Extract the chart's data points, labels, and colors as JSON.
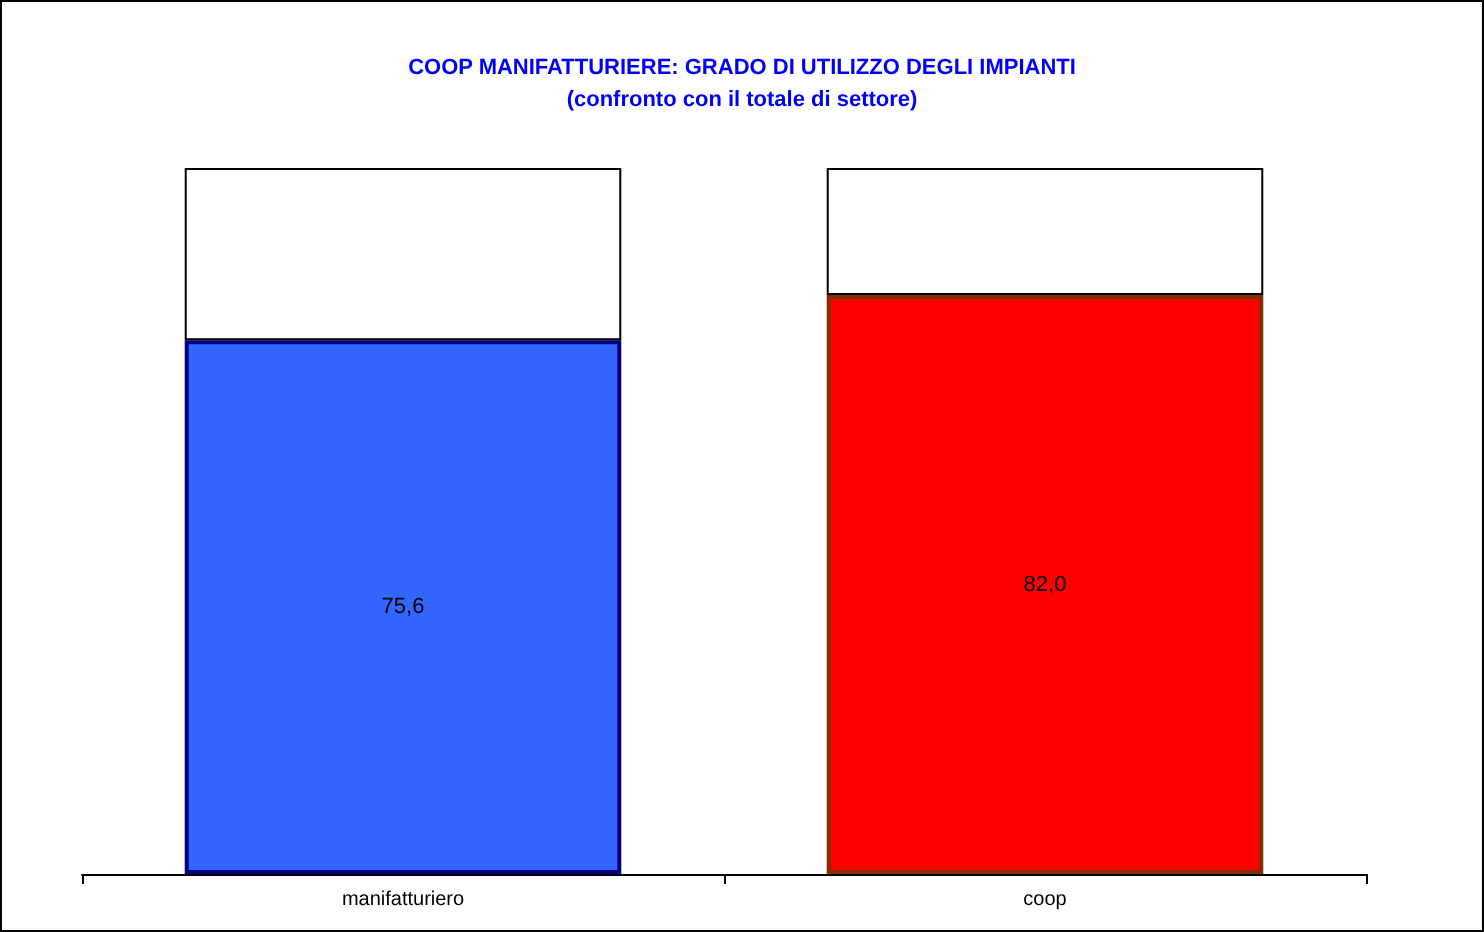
{
  "chart_data": {
    "type": "bar",
    "title": "COOP MANIFATTURIERE: GRADO DI UTILIZZO DEGLI IMPIANTI",
    "subtitle": "(confronto con il totale di settore)",
    "categories": [
      "manifatturiero",
      "coop"
    ],
    "stacked": true,
    "ylim": [
      0,
      100
    ],
    "tick_labels": "x",
    "grid": false,
    "series": [
      {
        "colors": [
          "#3366ff",
          "#ff0000"
        ],
        "values": [
          75.6,
          82.0
        ],
        "value_labels": [
          "75,6",
          "82,0"
        ]
      },
      {
        "color": "#ffffff",
        "values": [
          24.4,
          18.0
        ]
      }
    ]
  }
}
